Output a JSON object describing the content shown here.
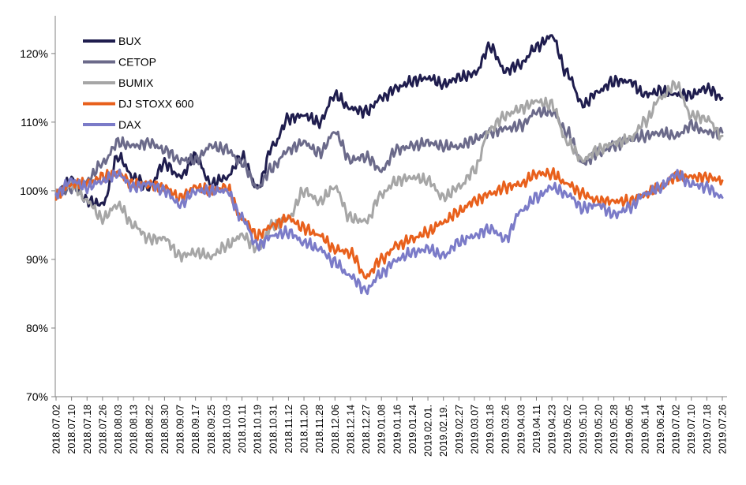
{
  "chart_data": {
    "type": "line",
    "title": "",
    "xlabel": "",
    "ylabel": "",
    "ylim": [
      70,
      125
    ],
    "yticks": [
      70,
      80,
      90,
      100,
      110,
      120
    ],
    "ytick_labels": [
      "70%",
      "80%",
      "90%",
      "100%",
      "110%",
      "120%"
    ],
    "grid": false,
    "legend": "top-left",
    "x_tick_labels": [
      "2018.07.02",
      "2018.07.10",
      "2018.07.18",
      "2018.07.26",
      "2018.08.03",
      "2018.08.13",
      "2018.08.22",
      "2018.08.30",
      "2018.09.07",
      "2018.09.17",
      "2018.09.25",
      "2018.10.03",
      "2018.10.11",
      "2018.10.19",
      "2018.10.31",
      "2018.11.12",
      "2018.11.20",
      "2018.11.28",
      "2018.12.06",
      "2018.12.14",
      "2018.12.27",
      "2019.01.08",
      "2019.01.16",
      "2019.01.24",
      "2019.02.01.",
      "2019.02.19.",
      "2019.02.27",
      "2019.03.07",
      "2019.03.18",
      "2019.03.26",
      "2019.04.03",
      "2019.04.11",
      "2019.04.23",
      "2019.05.02",
      "2019.05.10",
      "2019.05.20",
      "2019.05.28",
      "2019.06.05",
      "2019.06.14",
      "2019.06.24",
      "2019.07.02",
      "2019.07.10",
      "2019.07.18",
      "2019.07.26"
    ],
    "series": [
      {
        "name": "BUX",
        "color": "#1f1d4e",
        "values": [
          99.5,
          101.5,
          98.5,
          98.0,
          105.0,
          102.0,
          100.5,
          104.0,
          102.0,
          105.0,
          101.0,
          102.0,
          105.0,
          100.5,
          106.5,
          110.5,
          111.0,
          110.0,
          114.0,
          112.0,
          111.5,
          113.5,
          115.0,
          116.0,
          116.5,
          115.5,
          116.5,
          117.0,
          121.0,
          117.5,
          118.5,
          121.0,
          122.5,
          117.0,
          112.5,
          114.5,
          116.0,
          116.0,
          114.0,
          114.5,
          114.0,
          114.0,
          115.0,
          113.5
        ]
      },
      {
        "name": "CETOP",
        "color": "#6b6a8a",
        "values": [
          99.5,
          100.5,
          101.5,
          104.0,
          107.0,
          106.5,
          107.0,
          106.0,
          104.5,
          104.5,
          106.5,
          106.0,
          104.0,
          100.5,
          103.5,
          106.0,
          107.0,
          105.5,
          108.5,
          104.5,
          105.0,
          103.0,
          106.0,
          106.5,
          107.0,
          106.5,
          106.5,
          107.5,
          108.5,
          109.0,
          109.5,
          111.5,
          111.5,
          108.5,
          104.0,
          105.5,
          106.5,
          107.5,
          108.0,
          108.5,
          108.0,
          109.5,
          108.5,
          108.5
        ]
      },
      {
        "name": "BUMIX",
        "color": "#a6a6a6",
        "values": [
          99.5,
          101.0,
          98.5,
          96.0,
          98.0,
          95.0,
          93.0,
          93.0,
          90.5,
          91.0,
          90.5,
          92.0,
          93.5,
          91.5,
          95.0,
          96.0,
          100.0,
          98.5,
          100.5,
          96.0,
          95.5,
          99.5,
          101.5,
          102.0,
          101.5,
          99.0,
          100.5,
          103.0,
          109.0,
          111.0,
          112.0,
          113.0,
          112.5,
          107.0,
          104.5,
          106.0,
          107.0,
          107.5,
          110.0,
          113.5,
          115.5,
          111.0,
          110.5,
          108.0
        ]
      },
      {
        "name": "DJ STOXX 600",
        "color": "#e8601c",
        "values": [
          99.5,
          101.0,
          101.0,
          102.0,
          102.5,
          101.0,
          101.0,
          100.5,
          99.0,
          100.5,
          100.0,
          100.5,
          96.0,
          93.5,
          95.0,
          96.0,
          94.5,
          93.5,
          91.5,
          91.0,
          87.5,
          90.0,
          92.0,
          93.0,
          94.0,
          95.5,
          97.0,
          98.5,
          99.5,
          100.5,
          101.0,
          102.5,
          102.5,
          101.0,
          99.5,
          98.5,
          98.5,
          98.5,
          99.5,
          100.5,
          102.0,
          102.0,
          102.0,
          101.5
        ]
      },
      {
        "name": "DAX",
        "color": "#7b7bc8",
        "values": [
          99.5,
          101.5,
          100.5,
          101.5,
          102.5,
          100.5,
          101.0,
          100.0,
          98.0,
          100.0,
          100.0,
          100.0,
          96.0,
          92.0,
          93.5,
          94.0,
          92.5,
          91.5,
          89.5,
          87.5,
          85.5,
          88.0,
          90.0,
          91.0,
          91.5,
          90.5,
          92.5,
          93.5,
          94.5,
          93.0,
          97.0,
          99.0,
          100.5,
          99.5,
          97.5,
          98.0,
          96.5,
          97.5,
          99.5,
          100.5,
          102.5,
          101.0,
          100.5,
          99.0
        ]
      }
    ]
  }
}
